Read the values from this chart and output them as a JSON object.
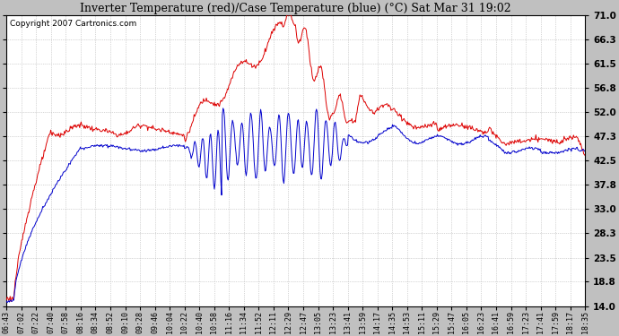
{
  "title": "Inverter Temperature (red)/Case Temperature (blue) (°C) Sat Mar 31 19:02",
  "copyright": "Copyright 2007 Cartronics.com",
  "ylabel_right_ticks": [
    14.0,
    18.8,
    23.5,
    28.3,
    33.0,
    37.8,
    42.5,
    47.3,
    52.0,
    56.8,
    61.5,
    66.3,
    71.0
  ],
  "ylim": [
    14.0,
    71.0
  ],
  "bg_color": "#c0c0c0",
  "plot_bg_color": "#ffffff",
  "grid_color": "#b0b0b0",
  "red_color": "#dd0000",
  "blue_color": "#0000cc",
  "x_labels": [
    "06:43",
    "07:02",
    "07:22",
    "07:40",
    "07:58",
    "08:16",
    "08:34",
    "08:52",
    "09:10",
    "09:28",
    "09:46",
    "10:04",
    "10:22",
    "10:40",
    "10:58",
    "11:16",
    "11:34",
    "11:52",
    "12:11",
    "12:29",
    "12:47",
    "13:05",
    "13:23",
    "13:41",
    "13:59",
    "14:17",
    "14:35",
    "14:53",
    "15:11",
    "15:29",
    "15:47",
    "16:05",
    "16:23",
    "16:41",
    "16:59",
    "17:23",
    "17:41",
    "17:59",
    "18:17",
    "18:35"
  ]
}
